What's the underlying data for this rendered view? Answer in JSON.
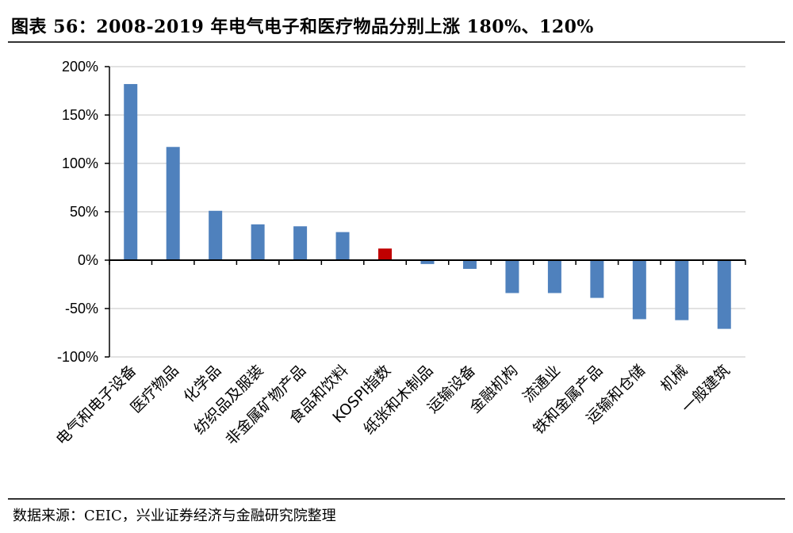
{
  "title": "图表 56：2008-2019 年电气电子和医疗物品分别上涨 180%、120%",
  "source": "数据来源：CEIC，兴业证券经济与金融研究院整理",
  "colors": {
    "bar": "#4f81bd",
    "highlight": "#c00000",
    "grid": "#d9d9d9",
    "axis": "#000000"
  },
  "chart_data": {
    "type": "bar",
    "categories": [
      "电气和电子设备",
      "医疗物品",
      "化学品",
      "纺织品及服装",
      "非金属矿物产品",
      "食品和饮料",
      "KOSPI指数",
      "纸张和木制品",
      "运输设备",
      "金融机构",
      "流通业",
      "铁和金属产品",
      "运输和仓储",
      "机械",
      "一般建筑"
    ],
    "values": [
      182,
      117,
      51,
      37,
      35,
      29,
      12,
      -4,
      -9,
      -34,
      -34,
      -39,
      -61,
      -62,
      -71
    ],
    "highlight_category": "KOSPI指数",
    "yticks": [
      "200%",
      "150%",
      "100%",
      "50%",
      "0%",
      "-50%",
      "-100%"
    ],
    "ylim": [
      -100,
      200
    ],
    "ytick_step": 50,
    "grid": true,
    "legend": "none"
  }
}
